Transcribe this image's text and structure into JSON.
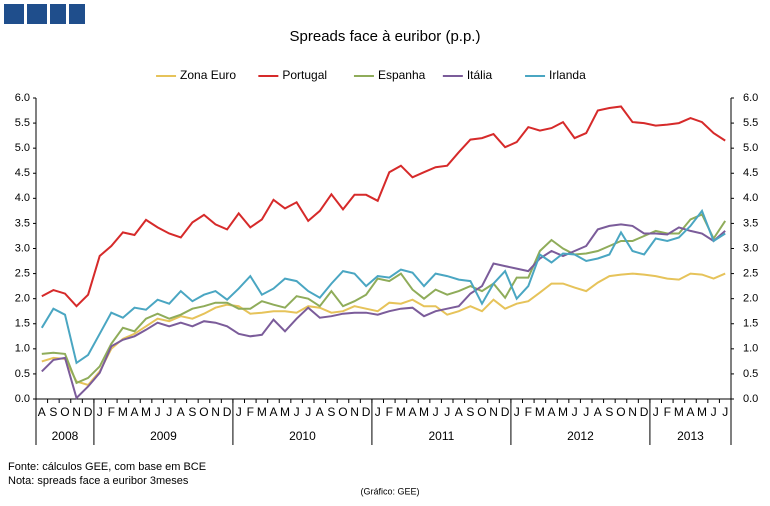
{
  "chart_data": {
    "type": "line",
    "title": "Spreads face à euribor (p.p.)",
    "categories": [
      "A",
      "S",
      "O",
      "N",
      "D",
      "J",
      "F",
      "M",
      "A",
      "M",
      "J",
      "J",
      "A",
      "S",
      "O",
      "N",
      "D",
      "J",
      "F",
      "M",
      "A",
      "M",
      "J",
      "J",
      "A",
      "S",
      "O",
      "N",
      "D",
      "J",
      "F",
      "M",
      "A",
      "M",
      "J",
      "J",
      "A",
      "S",
      "O",
      "N",
      "D",
      "J",
      "F",
      "M",
      "A",
      "M",
      "J",
      "J",
      "A",
      "S",
      "O",
      "N",
      "D",
      "J",
      "F",
      "M",
      "A",
      "M",
      "J",
      "J"
    ],
    "year_groups": [
      {
        "label": "2008",
        "months": 5
      },
      {
        "label": "2009",
        "months": 12
      },
      {
        "label": "2010",
        "months": 12
      },
      {
        "label": "2011",
        "months": 12
      },
      {
        "label": "2012",
        "months": 12
      },
      {
        "label": "2013",
        "months": 7
      }
    ],
    "series": [
      {
        "name": "Zona Euro",
        "color": "#e6c35a",
        "values": [
          0.75,
          0.82,
          0.8,
          0.35,
          0.28,
          0.55,
          1.0,
          1.2,
          1.3,
          1.45,
          1.6,
          1.55,
          1.65,
          1.6,
          1.7,
          1.82,
          1.88,
          1.85,
          1.7,
          1.72,
          1.75,
          1.75,
          1.72,
          1.85,
          1.82,
          1.72,
          1.75,
          1.85,
          1.8,
          1.75,
          1.92,
          1.9,
          1.98,
          1.85,
          1.85,
          1.68,
          1.75,
          1.85,
          1.75,
          1.98,
          1.8,
          1.9,
          1.95,
          2.12,
          2.3,
          2.3,
          2.22,
          2.15,
          2.32,
          2.45,
          2.48,
          2.5,
          2.48,
          2.45,
          2.4,
          2.38,
          2.5,
          2.48,
          2.4,
          2.5
        ]
      },
      {
        "name": "Portugal",
        "color": "#d62a2a",
        "values": [
          2.05,
          2.17,
          2.1,
          1.85,
          2.08,
          2.85,
          3.05,
          3.32,
          3.27,
          3.57,
          3.42,
          3.3,
          3.22,
          3.52,
          3.67,
          3.48,
          3.38,
          3.7,
          3.42,
          3.58,
          3.97,
          3.8,
          3.92,
          3.55,
          3.75,
          4.08,
          3.78,
          4.07,
          4.07,
          3.95,
          4.52,
          4.65,
          4.42,
          4.52,
          4.62,
          4.65,
          4.92,
          5.17,
          5.2,
          5.28,
          5.02,
          5.12,
          5.42,
          5.35,
          5.4,
          5.52,
          5.2,
          5.3,
          5.75,
          5.8,
          5.83,
          5.52,
          5.5,
          5.45,
          5.47,
          5.5,
          5.6,
          5.52,
          5.3,
          5.15
        ]
      },
      {
        "name": "Espanha",
        "color": "#8fac5a",
        "values": [
          0.9,
          0.92,
          0.9,
          0.32,
          0.42,
          0.65,
          1.1,
          1.42,
          1.35,
          1.6,
          1.7,
          1.6,
          1.68,
          1.8,
          1.85,
          1.92,
          1.92,
          1.8,
          1.8,
          1.95,
          1.88,
          1.82,
          2.05,
          2.0,
          1.85,
          2.15,
          1.85,
          1.95,
          2.08,
          2.4,
          2.35,
          2.5,
          2.18,
          2.0,
          2.18,
          2.08,
          2.15,
          2.25,
          2.15,
          2.3,
          2.02,
          2.42,
          2.42,
          2.95,
          3.17,
          3.0,
          2.88,
          2.9,
          2.95,
          3.05,
          3.15,
          3.15,
          3.25,
          3.35,
          3.3,
          3.3,
          3.58,
          3.68,
          3.2,
          3.55
        ]
      },
      {
        "name": "Itália",
        "color": "#7b5c9a",
        "values": [
          0.55,
          0.78,
          0.82,
          0.02,
          0.25,
          0.52,
          1.05,
          1.18,
          1.25,
          1.38,
          1.52,
          1.45,
          1.52,
          1.45,
          1.55,
          1.52,
          1.45,
          1.3,
          1.25,
          1.28,
          1.58,
          1.35,
          1.6,
          1.82,
          1.62,
          1.65,
          1.7,
          1.72,
          1.72,
          1.68,
          1.75,
          1.8,
          1.82,
          1.65,
          1.75,
          1.8,
          1.85,
          2.1,
          2.25,
          2.7,
          2.65,
          2.6,
          2.55,
          2.8,
          2.95,
          2.85,
          2.95,
          3.05,
          3.38,
          3.45,
          3.48,
          3.45,
          3.3,
          3.3,
          3.28,
          3.42,
          3.35,
          3.3,
          3.15,
          3.35
        ]
      },
      {
        "name": "Irlanda",
        "color": "#4aa6c2",
        "values": [
          1.42,
          1.8,
          1.68,
          0.72,
          0.88,
          1.3,
          1.72,
          1.62,
          1.82,
          1.78,
          1.98,
          1.9,
          2.15,
          1.95,
          2.08,
          2.15,
          1.98,
          2.2,
          2.45,
          2.08,
          2.2,
          2.4,
          2.35,
          2.15,
          2.02,
          2.3,
          2.55,
          2.5,
          2.25,
          2.45,
          2.42,
          2.58,
          2.52,
          2.25,
          2.5,
          2.45,
          2.38,
          2.35,
          1.9,
          2.3,
          2.55,
          2.0,
          2.25,
          2.88,
          2.72,
          2.9,
          2.88,
          2.75,
          2.8,
          2.88,
          3.32,
          2.95,
          2.88,
          3.2,
          3.15,
          3.22,
          3.45,
          3.75,
          3.15,
          3.3
        ]
      }
    ],
    "ylim": [
      0,
      6
    ],
    "yticks": [
      {
        "value": 0,
        "label": "0.0"
      },
      {
        "value": 0.5,
        "label": "0.5"
      },
      {
        "value": 1,
        "label": "1.0"
      },
      {
        "value": 1.5,
        "label": "1.5"
      },
      {
        "value": 2,
        "label": "2.0"
      },
      {
        "value": 2.5,
        "label": "2.5"
      },
      {
        "value": 3,
        "label": "3.0"
      },
      {
        "value": 3.5,
        "label": "3.5"
      },
      {
        "value": 4,
        "label": "4.0"
      },
      {
        "value": 4.5,
        "label": "4.5"
      },
      {
        "value": 5,
        "label": "5.0"
      },
      {
        "value": 5.5,
        "label": "5.5"
      },
      {
        "value": 6,
        "label": "6.0"
      }
    ],
    "y2lim": [
      0,
      6
    ],
    "y2ticks": [
      {
        "value": 0,
        "label": "0.0"
      },
      {
        "value": 0.5,
        "label": "0.5"
      },
      {
        "value": 1,
        "label": "1.0"
      },
      {
        "value": 1.5,
        "label": "1.5"
      },
      {
        "value": 2,
        "label": "2.0"
      },
      {
        "value": 2.5,
        "label": "2.5"
      },
      {
        "value": 3,
        "label": "3.0"
      },
      {
        "value": 3.5,
        "label": "3.5"
      },
      {
        "value": 4,
        "label": "4.0"
      },
      {
        "value": 4.5,
        "label": "4.5"
      },
      {
        "value": 5,
        "label": "5.0"
      },
      {
        "value": 5.5,
        "label": "5.5"
      },
      {
        "value": 6,
        "label": "6.0"
      }
    ],
    "legend": "top",
    "grid": false,
    "notes": [
      "Fonte: cálculos GEE, com base em BCE",
      "Nota: spreads face a euribor 3meses"
    ],
    "credit": "(Gráfico: GEE)"
  }
}
